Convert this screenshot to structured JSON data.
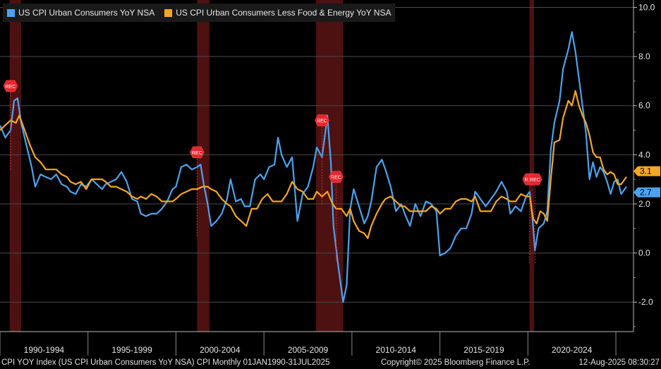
{
  "chart_data": {
    "type": "line",
    "title": "",
    "legend": [
      "US CPI Urban Consumers YoY NSA",
      "US CPI Urban Consumers Less Food & Energy YoY NSA"
    ],
    "y_axis": {
      "ticks": [
        "10.0",
        "8.0",
        "6.0",
        "4.0",
        "2.0",
        "0.0",
        "-2.0"
      ],
      "ylim": [
        -3.2,
        10.3
      ],
      "position": "right"
    },
    "x_axis": {
      "labels": [
        "1990-1994",
        "1995-1999",
        "2000-2004",
        "2005-2009",
        "2010-2014",
        "2015-2019",
        "2020-2024"
      ],
      "xlim": [
        1990.0,
        2026.0
      ]
    },
    "recessions": [
      {
        "start": 1990.55,
        "end": 1991.2,
        "label": "REC"
      },
      {
        "start": 2001.2,
        "end": 2001.9,
        "label": "REC"
      },
      {
        "start": 2007.95,
        "end": 2009.5,
        "label": "REC"
      },
      {
        "start": 2020.1,
        "end": 2020.35,
        "label": "REC"
      }
    ],
    "rec_flags": [
      {
        "x": 1990.6,
        "y": 6.8,
        "label": "REC"
      },
      {
        "x": 2001.2,
        "y": 4.1,
        "label": "REC"
      },
      {
        "x": 2008.3,
        "y": 5.4,
        "label": "REC"
      },
      {
        "x": 2009.1,
        "y": 3.1,
        "label": "REC"
      },
      {
        "x": 2020.1,
        "y": 3.0,
        "label": "REC"
      },
      {
        "x": 2020.4,
        "y": 3.0,
        "label": "REC"
      }
    ],
    "series": [
      {
        "name": "US CPI Urban Consumers YoY NSA",
        "color": "#4aa3f0",
        "points": [
          [
            1990.0,
            5.2
          ],
          [
            1990.3,
            4.7
          ],
          [
            1990.6,
            5.0
          ],
          [
            1990.8,
            6.2
          ],
          [
            1991.0,
            6.3
          ],
          [
            1991.2,
            5.3
          ],
          [
            1991.5,
            4.4
          ],
          [
            1991.8,
            3.5
          ],
          [
            1992.0,
            2.7
          ],
          [
            1992.3,
            3.2
          ],
          [
            1992.6,
            3.1
          ],
          [
            1992.9,
            3.0
          ],
          [
            1993.2,
            3.2
          ],
          [
            1993.5,
            2.8
          ],
          [
            1993.8,
            2.7
          ],
          [
            1994.0,
            2.5
          ],
          [
            1994.3,
            2.4
          ],
          [
            1994.6,
            2.8
          ],
          [
            1994.9,
            2.7
          ],
          [
            1995.2,
            3.0
          ],
          [
            1995.5,
            2.8
          ],
          [
            1995.8,
            2.6
          ],
          [
            1996.0,
            2.8
          ],
          [
            1996.3,
            2.9
          ],
          [
            1996.6,
            3.0
          ],
          [
            1996.9,
            3.3
          ],
          [
            1997.2,
            2.9
          ],
          [
            1997.5,
            2.2
          ],
          [
            1997.8,
            2.1
          ],
          [
            1998.0,
            1.6
          ],
          [
            1998.3,
            1.5
          ],
          [
            1998.6,
            1.6
          ],
          [
            1998.9,
            1.6
          ],
          [
            1999.2,
            1.8
          ],
          [
            1999.5,
            2.1
          ],
          [
            1999.8,
            2.6
          ],
          [
            2000.0,
            2.7
          ],
          [
            2000.3,
            3.5
          ],
          [
            2000.6,
            3.6
          ],
          [
            2000.9,
            3.4
          ],
          [
            2001.2,
            3.5
          ],
          [
            2001.4,
            3.6
          ],
          [
            2001.6,
            2.7
          ],
          [
            2001.8,
            2.0
          ],
          [
            2002.0,
            1.1
          ],
          [
            2002.3,
            1.3
          ],
          [
            2002.6,
            1.6
          ],
          [
            2002.9,
            2.2
          ],
          [
            2003.1,
            3.0
          ],
          [
            2003.4,
            2.1
          ],
          [
            2003.7,
            2.2
          ],
          [
            2003.9,
            1.9
          ],
          [
            2004.2,
            1.9
          ],
          [
            2004.5,
            3.0
          ],
          [
            2004.8,
            3.2
          ],
          [
            2005.0,
            3.0
          ],
          [
            2005.3,
            3.5
          ],
          [
            2005.6,
            3.6
          ],
          [
            2005.8,
            4.7
          ],
          [
            2006.0,
            4.0
          ],
          [
            2006.3,
            3.5
          ],
          [
            2006.6,
            3.9
          ],
          [
            2006.9,
            1.3
          ],
          [
            2007.2,
            2.4
          ],
          [
            2007.5,
            2.7
          ],
          [
            2007.8,
            3.5
          ],
          [
            2008.0,
            4.3
          ],
          [
            2008.3,
            3.9
          ],
          [
            2008.5,
            5.0
          ],
          [
            2008.6,
            5.6
          ],
          [
            2008.8,
            3.7
          ],
          [
            2008.95,
            1.1
          ],
          [
            2009.2,
            -0.4
          ],
          [
            2009.5,
            -2.0
          ],
          [
            2009.7,
            -1.3
          ],
          [
            2009.9,
            1.8
          ],
          [
            2010.1,
            2.6
          ],
          [
            2010.4,
            1.9
          ],
          [
            2010.7,
            1.2
          ],
          [
            2010.9,
            1.5
          ],
          [
            2011.1,
            2.1
          ],
          [
            2011.4,
            3.5
          ],
          [
            2011.7,
            3.8
          ],
          [
            2011.9,
            3.4
          ],
          [
            2012.2,
            2.7
          ],
          [
            2012.5,
            1.7
          ],
          [
            2012.8,
            2.0
          ],
          [
            2013.0,
            1.6
          ],
          [
            2013.3,
            1.1
          ],
          [
            2013.6,
            2.0
          ],
          [
            2013.9,
            1.5
          ],
          [
            2014.2,
            2.1
          ],
          [
            2014.5,
            2.0
          ],
          [
            2014.8,
            1.7
          ],
          [
            2015.0,
            -0.1
          ],
          [
            2015.3,
            0.0
          ],
          [
            2015.6,
            0.2
          ],
          [
            2015.9,
            0.7
          ],
          [
            2016.2,
            1.0
          ],
          [
            2016.5,
            1.0
          ],
          [
            2016.8,
            1.6
          ],
          [
            2017.0,
            2.5
          ],
          [
            2017.3,
            2.2
          ],
          [
            2017.6,
            1.9
          ],
          [
            2017.9,
            2.2
          ],
          [
            2018.2,
            2.5
          ],
          [
            2018.5,
            2.9
          ],
          [
            2018.8,
            2.5
          ],
          [
            2019.0,
            1.6
          ],
          [
            2019.3,
            1.9
          ],
          [
            2019.6,
            1.7
          ],
          [
            2019.9,
            2.3
          ],
          [
            2020.1,
            2.5
          ],
          [
            2020.25,
            1.5
          ],
          [
            2020.4,
            0.1
          ],
          [
            2020.6,
            1.0
          ],
          [
            2020.9,
            1.2
          ],
          [
            2021.1,
            1.7
          ],
          [
            2021.3,
            4.2
          ],
          [
            2021.5,
            5.3
          ],
          [
            2021.8,
            6.2
          ],
          [
            2022.0,
            7.5
          ],
          [
            2022.3,
            8.3
          ],
          [
            2022.5,
            9.0
          ],
          [
            2022.7,
            8.2
          ],
          [
            2022.9,
            7.1
          ],
          [
            2023.1,
            6.0
          ],
          [
            2023.3,
            4.9
          ],
          [
            2023.5,
            3.0
          ],
          [
            2023.7,
            3.7
          ],
          [
            2023.9,
            3.1
          ],
          [
            2024.1,
            3.5
          ],
          [
            2024.3,
            3.3
          ],
          [
            2024.5,
            2.9
          ],
          [
            2024.7,
            2.4
          ],
          [
            2024.9,
            2.9
          ],
          [
            2025.1,
            3.0
          ],
          [
            2025.3,
            2.4
          ],
          [
            2025.6,
            2.7
          ]
        ]
      },
      {
        "name": "US CPI Urban Consumers Less Food & Energy YoY NSA",
        "color": "#f5a623",
        "points": [
          [
            1990.0,
            5.0
          ],
          [
            1990.3,
            5.2
          ],
          [
            1990.6,
            5.4
          ],
          [
            1990.9,
            5.3
          ],
          [
            1991.1,
            5.6
          ],
          [
            1991.4,
            5.0
          ],
          [
            1991.7,
            4.4
          ],
          [
            1992.0,
            3.9
          ],
          [
            1992.3,
            3.7
          ],
          [
            1992.6,
            3.4
          ],
          [
            1992.9,
            3.4
          ],
          [
            1993.2,
            3.4
          ],
          [
            1993.5,
            3.2
          ],
          [
            1993.8,
            3.1
          ],
          [
            1994.0,
            2.9
          ],
          [
            1994.3,
            2.8
          ],
          [
            1994.6,
            2.9
          ],
          [
            1994.9,
            2.6
          ],
          [
            1995.2,
            3.0
          ],
          [
            1995.5,
            3.0
          ],
          [
            1995.8,
            3.0
          ],
          [
            1996.0,
            2.9
          ],
          [
            1996.3,
            2.7
          ],
          [
            1996.6,
            2.7
          ],
          [
            1996.9,
            2.6
          ],
          [
            1997.2,
            2.5
          ],
          [
            1997.5,
            2.3
          ],
          [
            1997.8,
            2.2
          ],
          [
            1998.0,
            2.3
          ],
          [
            1998.3,
            2.2
          ],
          [
            1998.6,
            2.4
          ],
          [
            1998.9,
            2.3
          ],
          [
            1999.2,
            2.1
          ],
          [
            1999.5,
            2.1
          ],
          [
            1999.8,
            2.1
          ],
          [
            2000.0,
            2.2
          ],
          [
            2000.3,
            2.4
          ],
          [
            2000.6,
            2.5
          ],
          [
            2000.9,
            2.6
          ],
          [
            2001.2,
            2.6
          ],
          [
            2001.5,
            2.7
          ],
          [
            2001.8,
            2.7
          ],
          [
            2002.0,
            2.6
          ],
          [
            2002.3,
            2.5
          ],
          [
            2002.6,
            2.2
          ],
          [
            2002.9,
            2.0
          ],
          [
            2003.1,
            1.9
          ],
          [
            2003.4,
            1.5
          ],
          [
            2003.7,
            1.3
          ],
          [
            2004.0,
            1.1
          ],
          [
            2004.3,
            1.8
          ],
          [
            2004.6,
            1.8
          ],
          [
            2004.9,
            2.2
          ],
          [
            2005.2,
            2.4
          ],
          [
            2005.5,
            2.1
          ],
          [
            2005.8,
            2.1
          ],
          [
            2006.0,
            2.1
          ],
          [
            2006.3,
            2.4
          ],
          [
            2006.6,
            2.9
          ],
          [
            2006.9,
            2.6
          ],
          [
            2007.2,
            2.5
          ],
          [
            2007.5,
            2.2
          ],
          [
            2007.8,
            2.2
          ],
          [
            2008.0,
            2.5
          ],
          [
            2008.3,
            2.3
          ],
          [
            2008.6,
            2.5
          ],
          [
            2008.9,
            2.0
          ],
          [
            2009.1,
            1.8
          ],
          [
            2009.4,
            1.8
          ],
          [
            2009.7,
            1.5
          ],
          [
            2009.9,
            1.8
          ],
          [
            2010.1,
            1.3
          ],
          [
            2010.4,
            0.9
          ],
          [
            2010.7,
            0.8
          ],
          [
            2010.9,
            0.6
          ],
          [
            2011.1,
            1.1
          ],
          [
            2011.4,
            1.6
          ],
          [
            2011.7,
            2.0
          ],
          [
            2011.9,
            2.2
          ],
          [
            2012.2,
            2.3
          ],
          [
            2012.5,
            2.1
          ],
          [
            2012.8,
            1.9
          ],
          [
            2013.0,
            1.9
          ],
          [
            2013.3,
            1.7
          ],
          [
            2013.6,
            1.7
          ],
          [
            2013.9,
            1.7
          ],
          [
            2014.2,
            1.7
          ],
          [
            2014.5,
            1.9
          ],
          [
            2014.8,
            1.8
          ],
          [
            2015.0,
            1.6
          ],
          [
            2015.3,
            1.8
          ],
          [
            2015.6,
            1.8
          ],
          [
            2015.9,
            2.1
          ],
          [
            2016.2,
            2.2
          ],
          [
            2016.5,
            2.2
          ],
          [
            2016.8,
            2.1
          ],
          [
            2017.0,
            2.3
          ],
          [
            2017.3,
            1.7
          ],
          [
            2017.6,
            1.7
          ],
          [
            2017.9,
            1.7
          ],
          [
            2018.2,
            2.1
          ],
          [
            2018.5,
            2.3
          ],
          [
            2018.8,
            2.2
          ],
          [
            2019.0,
            2.1
          ],
          [
            2019.3,
            2.1
          ],
          [
            2019.6,
            2.4
          ],
          [
            2019.9,
            2.3
          ],
          [
            2020.1,
            2.3
          ],
          [
            2020.3,
            1.4
          ],
          [
            2020.5,
            1.2
          ],
          [
            2020.7,
            1.7
          ],
          [
            2020.9,
            1.6
          ],
          [
            2021.1,
            1.3
          ],
          [
            2021.3,
            3.0
          ],
          [
            2021.5,
            4.5
          ],
          [
            2021.8,
            4.6
          ],
          [
            2022.0,
            5.5
          ],
          [
            2022.3,
            6.2
          ],
          [
            2022.5,
            6.0
          ],
          [
            2022.7,
            6.6
          ],
          [
            2022.9,
            6.0
          ],
          [
            2023.1,
            5.6
          ],
          [
            2023.3,
            5.3
          ],
          [
            2023.5,
            4.8
          ],
          [
            2023.7,
            4.1
          ],
          [
            2023.9,
            3.9
          ],
          [
            2024.1,
            3.9
          ],
          [
            2024.3,
            3.4
          ],
          [
            2024.5,
            3.2
          ],
          [
            2024.7,
            3.3
          ],
          [
            2024.9,
            3.2
          ],
          [
            2025.1,
            2.8
          ],
          [
            2025.3,
            2.8
          ],
          [
            2025.6,
            3.1
          ]
        ]
      }
    ],
    "last_values": [
      {
        "series": 1,
        "label": "3.1",
        "value": 3.1,
        "color": "#f5a623"
      },
      {
        "series": 0,
        "label": "2.7",
        "value": 2.7,
        "color": "#4aa3f0"
      }
    ]
  },
  "footer": {
    "source": "CPI YOY Index (US CPI Urban Consumers YoY NSA) CPI  Monthly 01JAN1990-31JUL2025",
    "copyright": "Copyright© 2025 Bloomberg Finance L.P.",
    "date": "12-Aug-2025 08:30:27"
  }
}
